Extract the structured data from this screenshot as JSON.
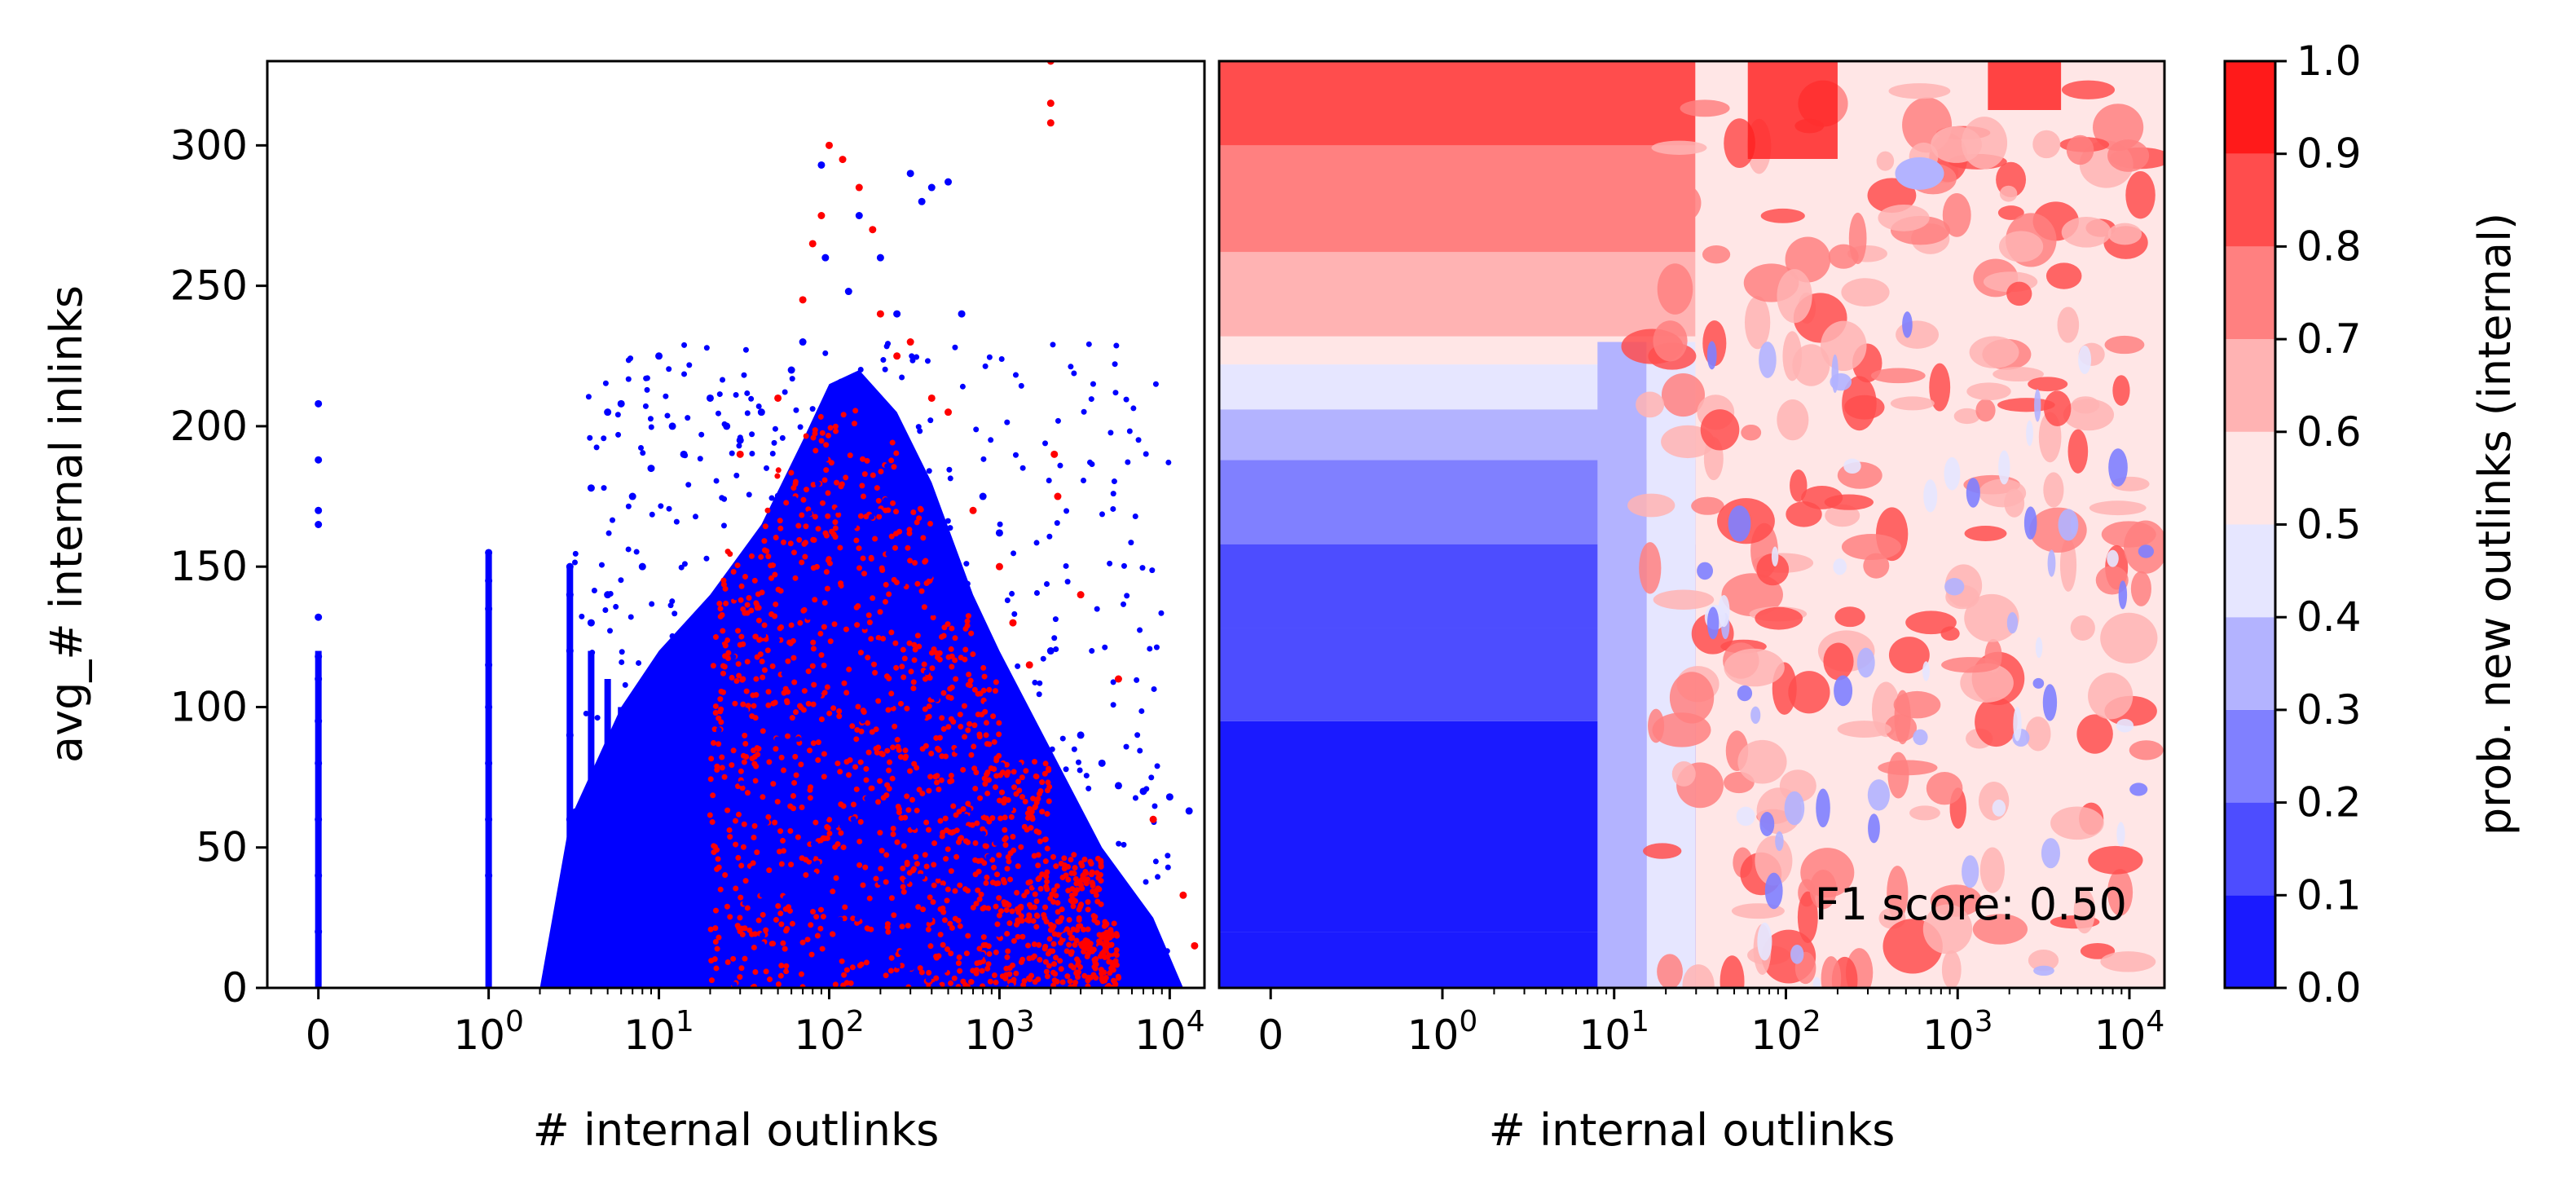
{
  "chart_data": [
    {
      "type": "scatter",
      "xlabel": "# internal outlinks",
      "ylabel": "avg_# internal inlinks",
      "x_scale": "symlog",
      "xlim": [
        -0.3,
        16000
      ],
      "ylim": [
        0,
        330
      ],
      "x_tick_labels": [
        "0",
        "10^0",
        "10^1",
        "10^2",
        "10^3",
        "10^4"
      ],
      "x_tick_values": [
        0,
        1,
        10,
        100,
        1000,
        10000
      ],
      "y_tick_labels": [
        "0",
        "50",
        "100",
        "150",
        "200",
        "250",
        "300"
      ],
      "y_tick_values": [
        0,
        50,
        100,
        150,
        200,
        250,
        300
      ],
      "colors": {
        "class_a": "#0000ff",
        "class_b": "#ff0000"
      },
      "series": [
        {
          "color": "#0000ff",
          "points": [
            [
              0,
              208
            ],
            [
              0,
              188
            ],
            [
              0,
              170
            ],
            [
              0,
              165
            ],
            [
              0,
              132
            ],
            [
              0,
              118
            ],
            [
              0,
              110
            ],
            [
              0,
              95
            ],
            [
              0,
              80
            ],
            [
              0,
              60
            ],
            [
              0,
              40
            ],
            [
              0,
              20
            ],
            [
              1,
              155
            ],
            [
              1,
              145
            ],
            [
              1,
              135
            ],
            [
              1,
              115
            ],
            [
              1,
              100
            ],
            [
              1,
              80
            ],
            [
              1,
              60
            ],
            [
              1,
              40
            ],
            [
              3,
              150
            ],
            [
              3,
              140
            ],
            [
              3,
              120
            ],
            [
              3,
              90
            ],
            [
              3,
              60
            ],
            [
              4,
              178
            ],
            [
              4,
              130
            ],
            [
              5,
              205
            ],
            [
              5,
              140
            ],
            [
              6,
              208
            ],
            [
              7,
              175
            ],
            [
              8,
              150
            ],
            [
              9,
              185
            ],
            [
              10,
              225
            ],
            [
              12,
              200
            ],
            [
              14,
              190
            ],
            [
              20,
              210
            ],
            [
              25,
              200
            ],
            [
              30,
              195
            ],
            [
              40,
              205
            ],
            [
              60,
              220
            ],
            [
              70,
              230
            ],
            [
              90,
              293
            ],
            [
              95,
              260
            ],
            [
              130,
              248
            ],
            [
              150,
              275
            ],
            [
              200,
              260
            ],
            [
              250,
              240
            ],
            [
              300,
              290
            ],
            [
              350,
              280
            ],
            [
              400,
              285
            ],
            [
              500,
              287
            ],
            [
              600,
              240
            ],
            [
              800,
              175
            ],
            [
              1000,
              162
            ],
            [
              2000,
              120
            ],
            [
              3000,
              90
            ],
            [
              4000,
              80
            ],
            [
              5000,
              72
            ],
            [
              7000,
              70
            ],
            [
              10000,
              68
            ],
            [
              13000,
              63
            ]
          ]
        },
        {
          "color": "#ff0000",
          "points": [
            [
              30,
              190
            ],
            [
              50,
              210
            ],
            [
              70,
              245
            ],
            [
              80,
              265
            ],
            [
              90,
              275
            ],
            [
              100,
              300
            ],
            [
              120,
              295
            ],
            [
              150,
              285
            ],
            [
              180,
              270
            ],
            [
              200,
              240
            ],
            [
              250,
              225
            ],
            [
              300,
              230
            ],
            [
              400,
              210
            ],
            [
              500,
              205
            ],
            [
              700,
              170
            ],
            [
              1000,
              150
            ],
            [
              1200,
              130
            ],
            [
              1500,
              115
            ],
            [
              2000,
              330
            ],
            [
              2000,
              315
            ],
            [
              2000,
              308
            ],
            [
              2100,
              190
            ],
            [
              2200,
              175
            ],
            [
              3000,
              140
            ],
            [
              5000,
              110
            ],
            [
              8000,
              60
            ],
            [
              12000,
              33
            ],
            [
              14000,
              15
            ]
          ]
        }
      ]
    },
    {
      "type": "heatmap",
      "xlabel": "# internal outlinks",
      "x_scale": "symlog",
      "xlim": [
        -0.3,
        16000
      ],
      "ylim": [
        0,
        330
      ],
      "x_tick_labels": [
        "0",
        "10^0",
        "10^1",
        "10^2",
        "10^3",
        "10^4"
      ],
      "x_tick_values": [
        0,
        1,
        10,
        100,
        1000,
        10000
      ],
      "colorbar": {
        "label": "prob. new outlinks (internal)",
        "levels": [
          0.0,
          0.1,
          0.2,
          0.3,
          0.4,
          0.5,
          0.6,
          0.7,
          0.8,
          0.9,
          1.0
        ],
        "tick_labels": [
          "0.0",
          "0.1",
          "0.2",
          "0.3",
          "0.4",
          "0.5",
          "0.6",
          "0.7",
          "0.8",
          "0.9",
          "1.0"
        ],
        "colors": [
          "#1a1aff",
          "#4d4dff",
          "#8080ff",
          "#b3b3ff",
          "#e6e6ff",
          "#ffe6e6",
          "#ffb3b3",
          "#ff8080",
          "#ff4d4d",
          "#ff1a1a"
        ]
      },
      "annotation": "F1 score: 0.50"
    }
  ]
}
